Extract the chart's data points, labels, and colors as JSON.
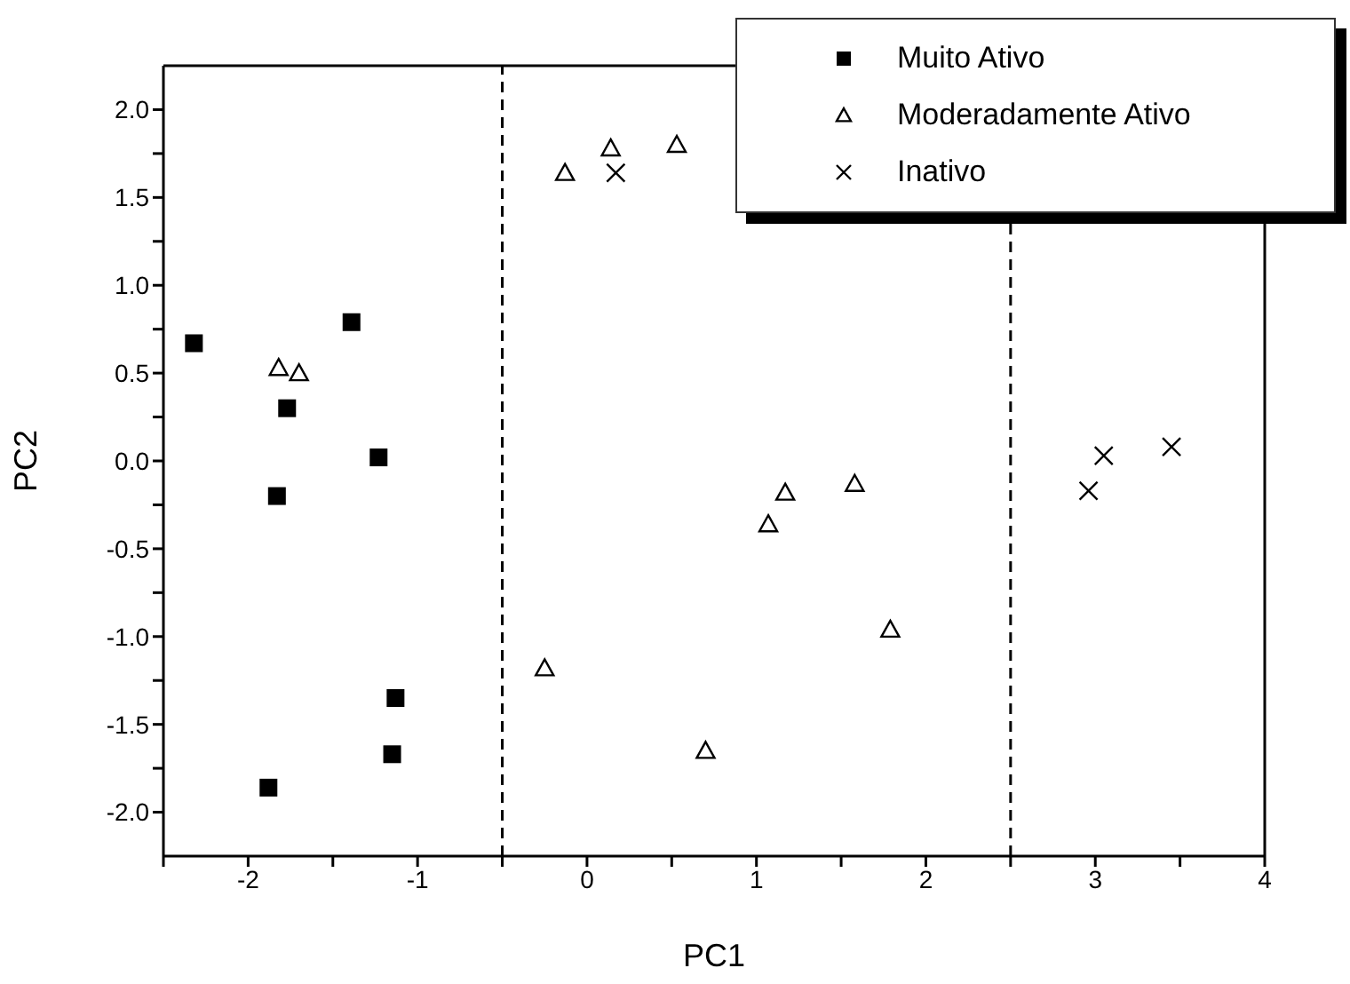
{
  "chart_data": {
    "type": "scatter",
    "xlabel": "PC1",
    "ylabel": "PC2",
    "xlim": [
      -2.5,
      4
    ],
    "ylim": [
      -2.25,
      2.25
    ],
    "xticks": [
      {
        "value": -2.5,
        "label": null
      },
      -2,
      {
        "value": -1.5,
        "label": null
      },
      -1,
      {
        "value": -0.5,
        "label": null
      },
      0,
      {
        "value": 0.5,
        "label": null
      },
      1,
      {
        "value": 1.5,
        "label": null
      },
      2,
      {
        "value": 2.5,
        "label": null
      },
      3,
      {
        "value": 3.5,
        "label": null
      },
      4
    ],
    "yticks": [
      {
        "value": -2,
        "label": "-2.0"
      },
      {
        "value": -1.75,
        "label": null
      },
      {
        "value": -1.5,
        "label": "-1.5"
      },
      {
        "value": -1.25,
        "label": null
      },
      {
        "value": -1,
        "label": "-1.0"
      },
      {
        "value": -0.75,
        "label": null
      },
      {
        "value": -0.5,
        "label": "-0.5"
      },
      {
        "value": -0.25,
        "label": null
      },
      {
        "value": 0,
        "label": "0.0"
      },
      {
        "value": 0.25,
        "label": null
      },
      {
        "value": 0.5,
        "label": "0.5"
      },
      {
        "value": 0.75,
        "label": null
      },
      {
        "value": 1,
        "label": "1.0"
      },
      {
        "value": 1.25,
        "label": null
      },
      {
        "value": 1.5,
        "label": "1.5"
      },
      {
        "value": 1.75,
        "label": null
      },
      {
        "value": 2,
        "label": "2.0"
      }
    ],
    "legend": "top right",
    "ref_lines": [
      {
        "axis": "x",
        "value": -0.5,
        "color": "#000000",
        "line_style": "dashed"
      },
      {
        "axis": "x",
        "value": 2.5,
        "color": "#000000",
        "line_style": "dashed"
      }
    ],
    "series": [
      {
        "name": "Muito Ativo",
        "color": "#000000",
        "marker": "square",
        "x": [
          -2.32,
          -1.39,
          -1.77,
          -1.23,
          -1.83,
          -1.13,
          -1.15,
          -1.88
        ],
        "values": [
          0.67,
          0.79,
          0.3,
          0.02,
          -0.2,
          -1.35,
          -1.67,
          -1.86
        ]
      },
      {
        "name": "Moderadamente Ativo",
        "color": "#000000",
        "marker": "triangle",
        "x": [
          -1.82,
          -1.7,
          -0.13,
          0.14,
          0.53,
          -0.25,
          0.7,
          1.07,
          1.17,
          1.58,
          1.79
        ],
        "values": [
          0.53,
          0.5,
          1.64,
          1.78,
          1.8,
          -1.18,
          -1.65,
          -0.36,
          -0.18,
          -0.13,
          -0.96
        ]
      },
      {
        "name": "Inativo",
        "color": "#000000",
        "marker": "cross",
        "x": [
          0.17,
          3.05,
          3.45,
          2.96
        ],
        "values": [
          1.64,
          0.03,
          0.08,
          -0.17
        ]
      }
    ]
  }
}
